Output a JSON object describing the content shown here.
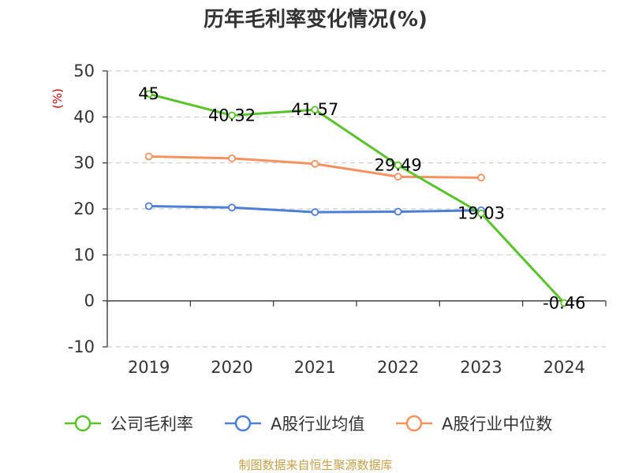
{
  "chart_data": {
    "type": "line",
    "title": "历年毛利率变化情况(%)",
    "ylabel": "(%)",
    "xlabel": "",
    "categories": [
      "2019",
      "2020",
      "2021",
      "2022",
      "2023",
      "2024"
    ],
    "ylim": [
      -10,
      50
    ],
    "yticks": [
      "50",
      "40",
      "30",
      "20",
      "10",
      "0",
      "-10"
    ],
    "grid": true,
    "legend_position": "bottom",
    "series": [
      {
        "name": "公司毛利率",
        "color": "#5ac22b",
        "values": [
          45,
          40.32,
          41.57,
          29.49,
          19.03,
          -0.46
        ],
        "labels": [
          "45",
          "40.32",
          "41.57",
          "29.49",
          "19.03",
          "-0.46"
        ]
      },
      {
        "name": "A股行业均值",
        "color": "#4e7fd6",
        "values": [
          20.6,
          20.3,
          19.3,
          19.4,
          19.7,
          null
        ]
      },
      {
        "name": "A股行业中位数",
        "color": "#f4935f",
        "values": [
          31.4,
          31.0,
          29.8,
          27.0,
          26.8,
          null
        ]
      }
    ],
    "source": "制图数据来自恒生聚源数据库",
    "ylabel_color": "#cc0000",
    "source_color": "#c8a04a"
  }
}
